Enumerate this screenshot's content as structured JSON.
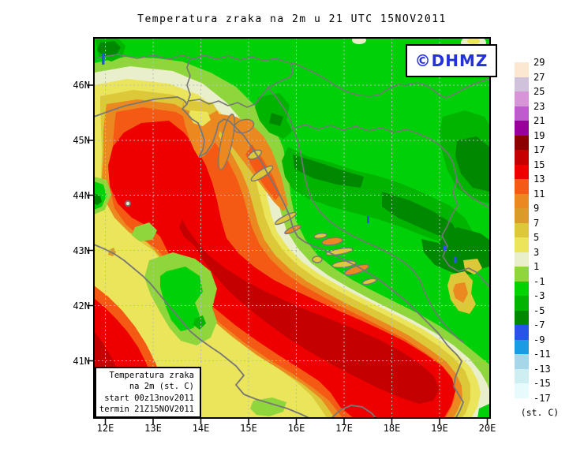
{
  "title": "Temperatura zraka na 2m u 21 UTC 15NOV2011",
  "watermark": {
    "label": "©DHMZ",
    "color": "#2230dd"
  },
  "info_box": {
    "lines": [
      "Temperatura zraka",
      "na 2m (st. C)",
      "start 00z13nov2011",
      "termin 21Z15NOV2011"
    ]
  },
  "colorbar": {
    "unit": "(st. C)",
    "labels": [
      "29",
      "27",
      "25",
      "23",
      "21",
      "19",
      "17",
      "15",
      "13",
      "11",
      "9",
      "7",
      "5",
      "3",
      "1",
      "-1",
      "-3",
      "-5",
      "-7",
      "-9",
      "-11",
      "-13",
      "-15",
      "-17"
    ],
    "cells": [
      "#fbe7d2",
      "#cfc2da",
      "#d795d7",
      "#bd5ccb",
      "#99009b",
      "#8d0000",
      "#c40000",
      "#ee0000",
      "#f55a14",
      "#ec8820",
      "#d99c28",
      "#dcc838",
      "#ebe55c",
      "#e9efca",
      "#8fd53c",
      "#00d300",
      "#00b400",
      "#008800",
      "#2952e8",
      "#199ce4",
      "#a6d7e8",
      "#cfeef2",
      "#e8fbfc"
    ]
  },
  "axes": {
    "lat": [
      "46N",
      "45N",
      "44N",
      "43N",
      "42N",
      "41N"
    ],
    "lon": [
      "12E",
      "13E",
      "14E",
      "15E",
      "16E",
      "17E",
      "18E",
      "19E",
      "20E"
    ]
  },
  "map": {
    "palette": {
      "sea_dark_red": "#c40000",
      "sea_red": "#ee0000",
      "orange_red": "#f55a14",
      "orange": "#ec8820",
      "gold": "#dcc838",
      "yellow": "#ebe55c",
      "pale": "#e9efca",
      "yellow_green": "#8fd53c",
      "green": "#00d008",
      "green_mid": "#00b400",
      "green_dark": "#008800",
      "cold_blue": "#2952e8",
      "coast_gray": "#777777",
      "grid_gray": "#b9bec2"
    }
  }
}
